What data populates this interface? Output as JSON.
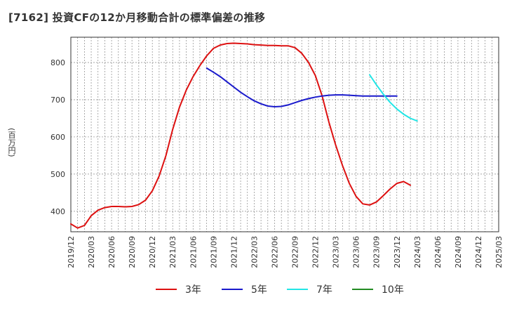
{
  "header": {
    "title": "[7162]  投資CFの12か月移動合計の標準偏差の推移"
  },
  "chart_data": {
    "type": "line",
    "title": "[7162]  投資CFの12か月移動合計の標準偏差の推移",
    "ylabel": "(百万円)",
    "xlabel": "",
    "ylim": [
      345,
      868
    ],
    "yticks": [
      400,
      500,
      600,
      700,
      800
    ],
    "x_tick_labels": [
      "2019/12",
      "2020/03",
      "2020/06",
      "2020/09",
      "2020/12",
      "2021/03",
      "2021/06",
      "2021/09",
      "2021/12",
      "2022/03",
      "2022/06",
      "2022/09",
      "2022/12",
      "2023/03",
      "2023/06",
      "2023/09",
      "2023/12",
      "2024/03",
      "2024/06",
      "2024/09",
      "2024/12",
      "2025/03"
    ],
    "x_start": "2019/12",
    "x_end": "2025/03",
    "grid": true,
    "legend_position": "bottom",
    "series": [
      {
        "name": "3年",
        "color": "#dd1111",
        "start": "2019/12",
        "values": [
          366,
          355,
          362,
          388,
          403,
          410,
          413,
          413,
          412,
          413,
          418,
          430,
          455,
          495,
          550,
          620,
          680,
          726,
          762,
          792,
          818,
          838,
          847,
          851,
          852,
          851,
          850,
          848,
          847,
          846,
          846,
          845,
          845,
          840,
          825,
          800,
          765,
          710,
          640,
          578,
          523,
          475,
          440,
          420,
          417,
          425,
          442,
          460,
          475,
          480,
          470
        ]
      },
      {
        "name": "5年",
        "color": "#1a1acc",
        "start": "2021/08",
        "values": [
          785,
          774,
          762,
          748,
          734,
          720,
          708,
          697,
          689,
          683,
          681,
          682,
          686,
          692,
          698,
          703,
          707,
          710,
          712,
          713,
          713,
          712,
          711,
          710,
          710,
          710,
          710,
          710,
          710
        ]
      },
      {
        "name": "7年",
        "color": "#22e6e6",
        "start": "2023/08",
        "values": [
          767,
          740,
          715,
          693,
          675,
          661,
          650,
          643
        ]
      },
      {
        "name": "10年",
        "color": "#228b22",
        "start": "2019/12",
        "values": []
      }
    ]
  }
}
